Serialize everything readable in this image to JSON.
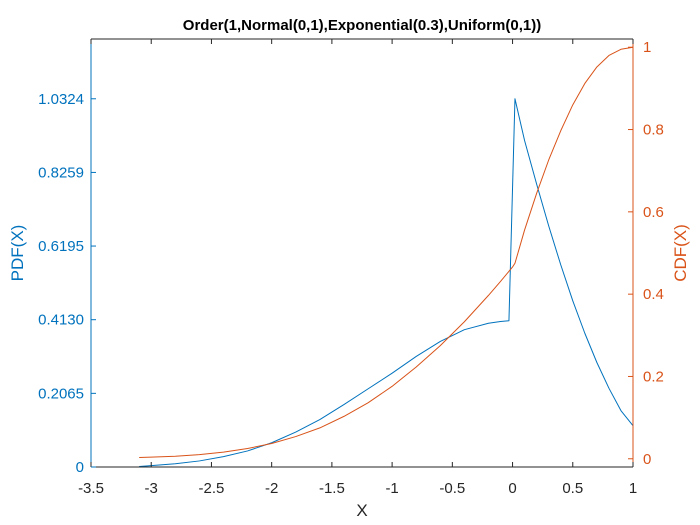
{
  "chart_data": {
    "type": "line",
    "title": "Order(1,Normal(0,1),Exponential(0.3),Uniform(0,1))",
    "xlabel": "X",
    "ylabel_left": "PDF(X)",
    "ylabel_right": "CDF(X)",
    "xlim": [
      -3.5,
      1
    ],
    "ylim_left": [
      0,
      1.2
    ],
    "ylim_right": [
      -0.02,
      1.02
    ],
    "x_ticks": [
      "-3.5",
      "-3",
      "-2.5",
      "-2",
      "-1.5",
      "-1",
      "-0.5",
      "0",
      "0.5",
      "1"
    ],
    "y_left_ticks": [
      "0",
      "0.2065",
      "0.4130",
      "0.6195",
      "0.8259",
      "1.0324"
    ],
    "y_right_ticks": [
      "0",
      "0.2",
      "0.4",
      "0.6",
      "0.8",
      "1"
    ],
    "grid": false,
    "colors": {
      "pdf": "#0072BD",
      "cdf": "#D95319",
      "axes": "#262626"
    },
    "series": [
      {
        "key": "pdf",
        "axis": "left",
        "x": [
          -3.1,
          -3.0,
          -2.8,
          -2.6,
          -2.4,
          -2.2,
          -2.0,
          -1.8,
          -1.6,
          -1.4,
          -1.2,
          -1.0,
          -0.8,
          -0.6,
          -0.4,
          -0.2,
          -0.1,
          -0.03,
          0.02,
          0.1,
          0.2,
          0.3,
          0.4,
          0.5,
          0.6,
          0.7,
          0.8,
          0.9,
          1.0
        ],
        "y": [
          0.0014,
          0.004,
          0.009,
          0.017,
          0.029,
          0.045,
          0.068,
          0.098,
          0.133,
          0.175,
          0.219,
          0.263,
          0.31,
          0.352,
          0.385,
          0.403,
          0.408,
          0.41,
          1.0324,
          0.915,
          0.793,
          0.676,
          0.567,
          0.466,
          0.375,
          0.293,
          0.221,
          0.158,
          0.116
        ]
      },
      {
        "key": "cdf",
        "axis": "right",
        "x": [
          -3.1,
          -3.0,
          -2.8,
          -2.6,
          -2.4,
          -2.2,
          -2.0,
          -1.8,
          -1.6,
          -1.4,
          -1.2,
          -1.0,
          -0.8,
          -0.6,
          -0.4,
          -0.2,
          -0.1,
          0.0,
          0.02,
          0.1,
          0.2,
          0.3,
          0.4,
          0.5,
          0.6,
          0.7,
          0.8,
          0.9,
          1.0
        ],
        "y": [
          0.003,
          0.004,
          0.006,
          0.01,
          0.016,
          0.025,
          0.037,
          0.054,
          0.075,
          0.103,
          0.136,
          0.176,
          0.223,
          0.275,
          0.333,
          0.397,
          0.431,
          0.466,
          0.475,
          0.556,
          0.645,
          0.726,
          0.797,
          0.86,
          0.912,
          0.952,
          0.98,
          0.995,
          1.0
        ]
      }
    ]
  }
}
